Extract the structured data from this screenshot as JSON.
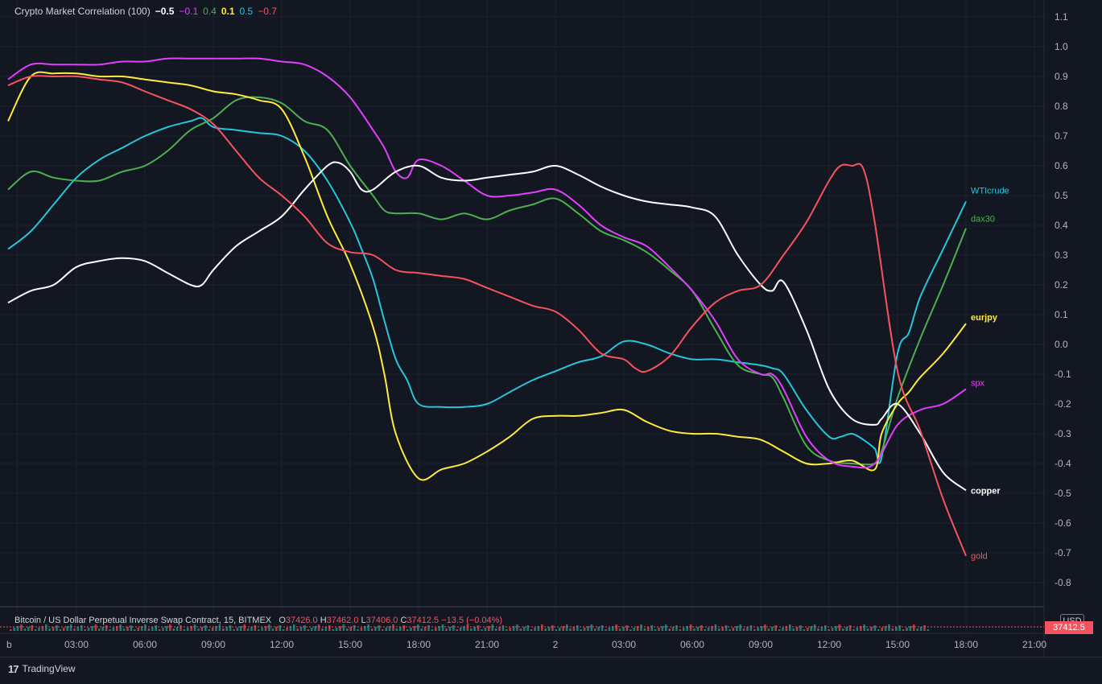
{
  "legend": {
    "title": "Crypto Market Correlation (100)",
    "values": [
      {
        "text": "−0.5",
        "color": "#ffffff"
      },
      {
        "text": "−0.1",
        "color": "#e040fb"
      },
      {
        "text": "0.4",
        "color": "#4caf50"
      },
      {
        "text": "0.1",
        "color": "#ffeb3b"
      },
      {
        "text": "0.5",
        "color": "#26c6da"
      },
      {
        "text": "−0.7",
        "color": "#f7525f"
      }
    ]
  },
  "lower_pane": {
    "symbol": "Bitcoin / US Dollar Perpetual Inverse Swap Contract, 15, BITMEX",
    "o_label": "O",
    "o": "37426.0",
    "h_label": "H",
    "h": "37462.0",
    "l_label": "L",
    "l": "37406.0",
    "c_label": "C",
    "c": "37412.5",
    "change": "−13.5 (−0.04%)",
    "currency": "USD",
    "price_tag": "37412.5"
  },
  "branding": {
    "logo_text": "TradingView",
    "mark": "17"
  },
  "chart_data": {
    "type": "line",
    "title": "Crypto Market Correlation (100)",
    "x_tick_labels": [
      "b",
      "03:00",
      "06:00",
      "09:00",
      "12:00",
      "15:00",
      "18:00",
      "21:00",
      "2",
      "03:00",
      "06:00",
      "09:00",
      "12:00",
      "15:00",
      "18:00",
      "21:00"
    ],
    "x_tick_hours": [
      0.4,
      3,
      6,
      9,
      12,
      15,
      18,
      21,
      24,
      27,
      30,
      33,
      36,
      39,
      42,
      45
    ],
    "y_ticks": [
      1.1,
      1.0,
      0.9,
      0.8,
      0.7,
      0.6,
      0.5,
      0.4,
      0.3,
      0.2,
      0.1,
      0.0,
      -0.1,
      -0.2,
      -0.3,
      -0.4,
      -0.5,
      -0.6,
      -0.7,
      -0.8
    ],
    "ylim": [
      -0.87,
      1.16
    ],
    "xlim_hours": [
      0,
      47
    ],
    "grid": true,
    "series": [
      {
        "name": "WTIcrude",
        "color": "#26c6da",
        "x": [
          0,
          1,
          2,
          3,
          4,
          5,
          6,
          7,
          8,
          8.5,
          9,
          10,
          11,
          12,
          13,
          14,
          15,
          15.5,
          16,
          16.5,
          17,
          17.5,
          18,
          19,
          20,
          21,
          22,
          23,
          24,
          25,
          26,
          27,
          28,
          29,
          30,
          31,
          32,
          33,
          33.5,
          34,
          35,
          36,
          36.5,
          37,
          37.5,
          38,
          38.3,
          39,
          39.5,
          40,
          41,
          42
        ],
        "y": [
          0.32,
          0.38,
          0.47,
          0.56,
          0.62,
          0.66,
          0.7,
          0.73,
          0.75,
          0.76,
          0.73,
          0.72,
          0.71,
          0.7,
          0.65,
          0.55,
          0.41,
          0.32,
          0.22,
          0.08,
          -0.05,
          -0.12,
          -0.2,
          -0.21,
          -0.21,
          -0.2,
          -0.16,
          -0.12,
          -0.09,
          -0.06,
          -0.04,
          0.01,
          0.0,
          -0.03,
          -0.05,
          -0.05,
          -0.06,
          -0.07,
          -0.08,
          -0.1,
          -0.22,
          -0.31,
          -0.31,
          -0.3,
          -0.32,
          -0.35,
          -0.38,
          -0.03,
          0.04,
          0.16,
          0.32,
          0.48
        ]
      },
      {
        "name": "dax30",
        "color": "#4caf50",
        "x": [
          0,
          1,
          2,
          3,
          4,
          5,
          6,
          7,
          8,
          9,
          10,
          11,
          12,
          13,
          14,
          15,
          16,
          16.5,
          17,
          18,
          19,
          20,
          21,
          22,
          23,
          24,
          25,
          26,
          27,
          28,
          29,
          30,
          31,
          32,
          33,
          33.5,
          34,
          35,
          36,
          37,
          38,
          38.3,
          39,
          40,
          41,
          42
        ],
        "y": [
          0.52,
          0.58,
          0.56,
          0.55,
          0.55,
          0.58,
          0.6,
          0.65,
          0.72,
          0.76,
          0.82,
          0.83,
          0.81,
          0.75,
          0.72,
          0.6,
          0.5,
          0.45,
          0.44,
          0.44,
          0.42,
          0.44,
          0.42,
          0.45,
          0.47,
          0.49,
          0.44,
          0.38,
          0.35,
          0.31,
          0.25,
          0.18,
          0.05,
          -0.07,
          -0.1,
          -0.11,
          -0.18,
          -0.34,
          -0.39,
          -0.4,
          -0.4,
          -0.36,
          -0.18,
          0.02,
          0.2,
          0.39
        ]
      },
      {
        "name": "eurjpy",
        "color": "#ffeb3b",
        "x": [
          0,
          1,
          2,
          3,
          4,
          5,
          6,
          7,
          8,
          9,
          10,
          11,
          12,
          13,
          14,
          15,
          16,
          16.5,
          17,
          18,
          19,
          20,
          21,
          22,
          23,
          24,
          25,
          26,
          27,
          28,
          29,
          30,
          31,
          32,
          33,
          34,
          35,
          36,
          37,
          38,
          38.3,
          39,
          39.5,
          40,
          41,
          42
        ],
        "y": [
          0.75,
          0.9,
          0.91,
          0.91,
          0.9,
          0.9,
          0.89,
          0.88,
          0.87,
          0.85,
          0.84,
          0.82,
          0.79,
          0.63,
          0.43,
          0.27,
          0.06,
          -0.1,
          -0.3,
          -0.45,
          -0.42,
          -0.4,
          -0.36,
          -0.31,
          -0.25,
          -0.24,
          -0.24,
          -0.23,
          -0.22,
          -0.26,
          -0.29,
          -0.3,
          -0.3,
          -0.31,
          -0.32,
          -0.36,
          -0.4,
          -0.4,
          -0.39,
          -0.42,
          -0.3,
          -0.2,
          -0.16,
          -0.11,
          -0.03,
          0.07
        ]
      },
      {
        "name": "spx",
        "color": "#e040fb",
        "x": [
          0,
          1,
          2,
          3,
          4,
          5,
          6,
          7,
          8,
          9,
          10,
          11,
          12,
          13,
          14,
          15,
          16,
          16.5,
          17,
          17.5,
          18,
          19,
          20,
          21,
          22,
          23,
          24,
          25,
          26,
          27,
          28,
          29,
          30,
          31,
          32,
          33,
          33.5,
          34,
          35,
          36,
          37,
          38,
          39,
          40,
          41,
          42
        ],
        "y": [
          0.89,
          0.94,
          0.94,
          0.94,
          0.94,
          0.95,
          0.95,
          0.96,
          0.96,
          0.96,
          0.96,
          0.96,
          0.95,
          0.94,
          0.9,
          0.83,
          0.72,
          0.66,
          0.58,
          0.56,
          0.62,
          0.6,
          0.55,
          0.5,
          0.5,
          0.51,
          0.52,
          0.47,
          0.4,
          0.36,
          0.33,
          0.26,
          0.18,
          0.08,
          -0.05,
          -0.1,
          -0.1,
          -0.15,
          -0.31,
          -0.39,
          -0.41,
          -0.4,
          -0.27,
          -0.22,
          -0.2,
          -0.15
        ]
      },
      {
        "name": "copper",
        "color": "#ffffff",
        "x": [
          0,
          1,
          2,
          3,
          4,
          5,
          6,
          7,
          8,
          8.5,
          9,
          10,
          11,
          12,
          13,
          14,
          14.5,
          15,
          15.5,
          16,
          17,
          18,
          19,
          20,
          21,
          22,
          23,
          24,
          25,
          26,
          27,
          28,
          29,
          30,
          31,
          32,
          33,
          33.5,
          34,
          35,
          36,
          37,
          38,
          38.3,
          39,
          40,
          41,
          42
        ],
        "y": [
          0.14,
          0.18,
          0.2,
          0.26,
          0.28,
          0.29,
          0.28,
          0.24,
          0.2,
          0.2,
          0.25,
          0.33,
          0.38,
          0.43,
          0.52,
          0.6,
          0.61,
          0.58,
          0.52,
          0.52,
          0.58,
          0.6,
          0.56,
          0.55,
          0.56,
          0.57,
          0.58,
          0.6,
          0.57,
          0.53,
          0.5,
          0.48,
          0.47,
          0.46,
          0.43,
          0.3,
          0.2,
          0.18,
          0.21,
          0.05,
          -0.15,
          -0.25,
          -0.27,
          -0.25,
          -0.2,
          -0.3,
          -0.43,
          -0.49
        ]
      },
      {
        "name": "gold",
        "color": "#f7525f",
        "x": [
          0,
          1,
          2,
          3,
          4,
          5,
          6,
          7,
          8,
          9,
          10,
          11,
          12,
          13,
          14,
          15,
          16,
          17,
          18,
          19,
          20,
          21,
          22,
          23,
          24,
          25,
          26,
          27,
          27.5,
          28,
          29,
          30,
          31,
          32,
          33,
          34,
          35,
          36,
          36.5,
          37,
          37.5,
          38,
          39,
          40,
          41,
          42
        ],
        "y": [
          0.87,
          0.9,
          0.9,
          0.9,
          0.89,
          0.88,
          0.85,
          0.82,
          0.79,
          0.74,
          0.65,
          0.56,
          0.5,
          0.43,
          0.34,
          0.31,
          0.3,
          0.25,
          0.24,
          0.23,
          0.22,
          0.19,
          0.16,
          0.13,
          0.11,
          0.05,
          -0.03,
          -0.05,
          -0.08,
          -0.09,
          -0.04,
          0.06,
          0.14,
          0.18,
          0.2,
          0.3,
          0.41,
          0.55,
          0.6,
          0.6,
          0.59,
          0.41,
          -0.09,
          -0.29,
          -0.52,
          -0.71
        ]
      }
    ]
  }
}
